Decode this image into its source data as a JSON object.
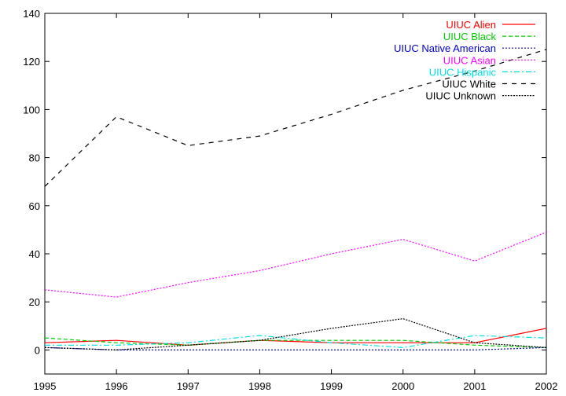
{
  "chart_data": {
    "type": "line",
    "title": "",
    "xlabel": "",
    "ylabel": "",
    "xlim": [
      1995,
      2002
    ],
    "ylim": [
      -10,
      140
    ],
    "x": [
      1995,
      1996,
      1997,
      1998,
      1999,
      2000,
      2001,
      2002
    ],
    "x_ticks": [
      "1995",
      "1996",
      "1997",
      "1998",
      "1999",
      "2000",
      "2001",
      "2002"
    ],
    "y_ticks": [
      "0",
      "20",
      "40",
      "60",
      "80",
      "100",
      "120",
      "140"
    ],
    "grid": false,
    "legend_position": "top-right",
    "series": [
      {
        "name": "UIUC Alien",
        "color": "#ff0000",
        "dash": "solid",
        "values": [
          3,
          4,
          2,
          4,
          3,
          3,
          3,
          9
        ]
      },
      {
        "name": "UIUC Black",
        "color": "#00cc00",
        "dash": "dashed",
        "values": [
          5,
          3,
          2,
          4,
          4,
          4,
          2,
          1
        ]
      },
      {
        "name": "UIUC Native American",
        "color": "#0000cc",
        "dash": "dotted",
        "values": [
          1,
          0,
          0,
          0,
          0,
          0,
          0,
          1
        ]
      },
      {
        "name": "UIUC Asian",
        "color": "#ff00ff",
        "dash": "dotted",
        "values": [
          25,
          22,
          28,
          33,
          40,
          46,
          37,
          49
        ]
      },
      {
        "name": "UIUC Hispanic",
        "color": "#00e0e0",
        "dash": "dashdot",
        "values": [
          2,
          2,
          3,
          6,
          3,
          1,
          6,
          5
        ]
      },
      {
        "name": "UIUC White",
        "color": "#000000",
        "dash": "loose-dashed",
        "values": [
          68,
          97,
          85,
          89,
          98,
          108,
          116,
          125
        ]
      },
      {
        "name": "UIUC Unknown",
        "color": "#000000",
        "dash": "dense-dotted",
        "values": [
          1,
          0,
          2,
          4,
          9,
          13,
          3,
          1
        ]
      }
    ]
  }
}
